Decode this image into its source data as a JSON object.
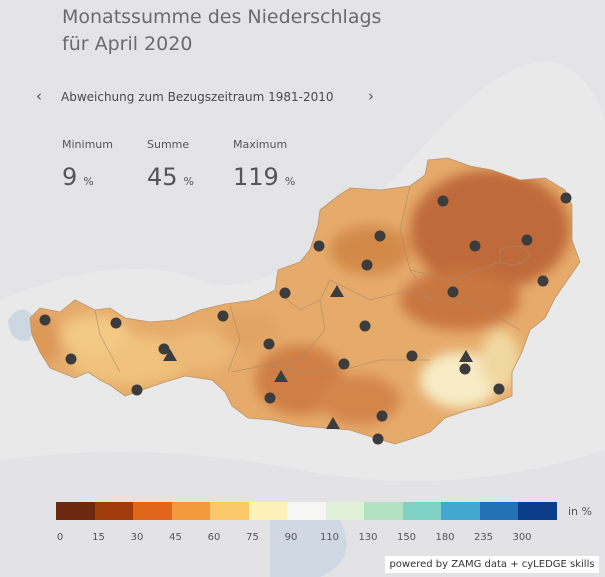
{
  "title": {
    "line1": "Monatssumme des Niederschlags",
    "line2": "für April 2020"
  },
  "nav": {
    "prev_icon": "chevron-left-icon",
    "next_icon": "chevron-right-icon",
    "label": "Abweichung zum Bezugszeitraum 1981-2010"
  },
  "stats": {
    "minimum": {
      "label": "Minimum",
      "value": "9",
      "unit": "%"
    },
    "summe": {
      "label": "Summe",
      "value": "45",
      "unit": "%"
    },
    "maximum": {
      "label": "Maximum",
      "value": "119",
      "unit": "%"
    }
  },
  "legend": {
    "unit": "in %",
    "colors": [
      "#6b2a10",
      "#a33c0d",
      "#e2661a",
      "#f29a3d",
      "#fbc96a",
      "#fdf0b9",
      "#f6f6f4",
      "#e1f0d8",
      "#b3e2c2",
      "#7fd1c6",
      "#44a7d0",
      "#2173b6",
      "#0b3d8a"
    ],
    "ticks": [
      "0",
      "15",
      "30",
      "45",
      "60",
      "75",
      "90",
      "110",
      "130",
      "150",
      "180",
      "235",
      "300"
    ]
  },
  "credit": "powered by ZAMG data + cyLEDGE skills",
  "colors": {
    "background": "#e9e9ea",
    "dark_orange": "#bf6a37",
    "mid_orange": "#e1a261",
    "light_orange": "#f0c684",
    "pale": "#f8ecc6",
    "marker": "#3c3c3c"
  }
}
